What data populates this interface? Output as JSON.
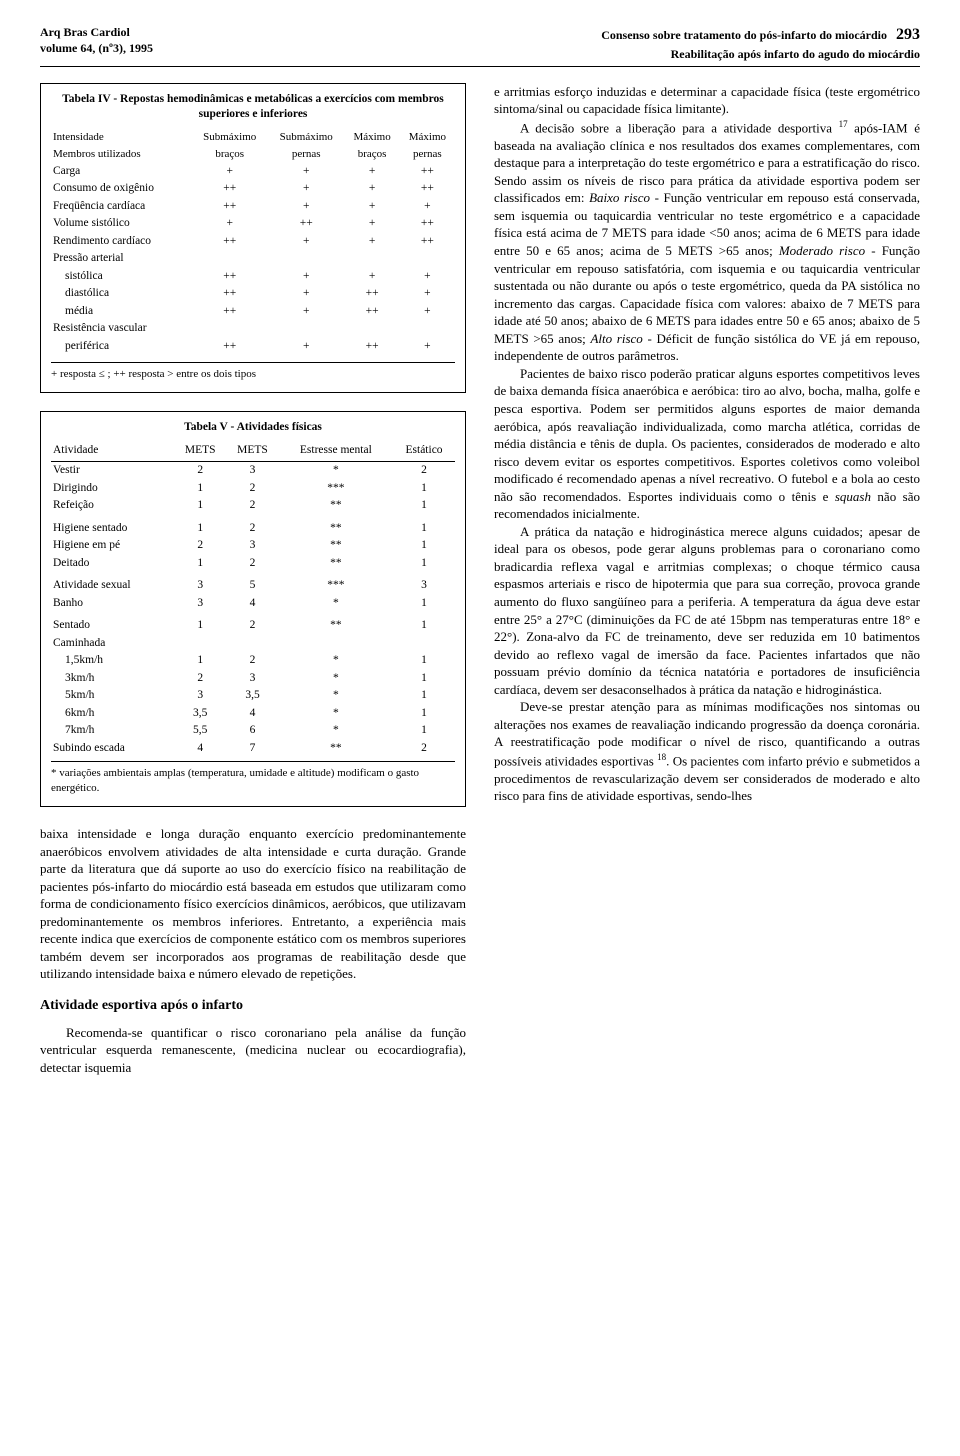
{
  "header": {
    "journal": "Arq Bras Cardiol",
    "volume": "volume 64, (nº3), 1995",
    "article_title_1": "Consenso sobre tratamento do pós-infarto do miocárdio",
    "article_title_2": "Reabilitação após infarto do agudo do miocárdio",
    "page_number": "293"
  },
  "table4": {
    "title": "Tabela IV - Repostas hemodinâmicas e metabólicas a exercícios com membros superiores e inferiores",
    "columns": [
      {
        "h1": "Intensidade",
        "h2": "Membros utilizados"
      },
      {
        "h1": "Submáximo",
        "h2": "braços"
      },
      {
        "h1": "Submáximo",
        "h2": "pernas"
      },
      {
        "h1": "Máximo",
        "h2": "braços"
      },
      {
        "h1": "Máximo",
        "h2": "pernas"
      }
    ],
    "rows": [
      {
        "label": "Carga",
        "c": [
          "+",
          "+",
          "+",
          "++"
        ]
      },
      {
        "label": "Consumo de oxigênio",
        "c": [
          "++",
          "+",
          "+",
          "++"
        ]
      },
      {
        "label": "Freqüência cardíaca",
        "c": [
          "++",
          "+",
          "+",
          "+"
        ]
      },
      {
        "label": "Volume sistólico",
        "c": [
          "+",
          "++",
          "+",
          "++"
        ]
      },
      {
        "label": "Rendimento cardíaco",
        "c": [
          "++",
          "+",
          "+",
          "++"
        ]
      },
      {
        "label": "Pressão arterial",
        "c": [
          "",
          "",
          "",
          ""
        ],
        "section": true
      },
      {
        "label": "sistólica",
        "c": [
          "++",
          "+",
          "+",
          "+"
        ],
        "indent": true
      },
      {
        "label": "diastólica",
        "c": [
          "++",
          "+",
          "++",
          "+"
        ],
        "indent": true
      },
      {
        "label": "média",
        "c": [
          "++",
          "+",
          "++",
          "+"
        ],
        "indent": true
      },
      {
        "label": "Resistência vascular",
        "c": [
          "",
          "",
          "",
          ""
        ],
        "section": true
      },
      {
        "label": "periférica",
        "c": [
          "++",
          "+",
          "++",
          "+"
        ],
        "indent": true
      }
    ],
    "note": "+ resposta ≤ ; ++ resposta > entre os dois tipos"
  },
  "table5": {
    "title": "Tabela V - Atividades físicas",
    "columns": [
      "Atividade",
      "METS",
      "METS",
      "Estresse mental",
      "Estático"
    ],
    "rows": [
      {
        "c": [
          "Vestir",
          "2",
          "3",
          "*",
          "2"
        ]
      },
      {
        "c": [
          "Dirigindo",
          "1",
          "2",
          "***",
          "1"
        ]
      },
      {
        "c": [
          "Refeição",
          "1",
          "2",
          "**",
          "1"
        ]
      },
      {
        "c": [
          "Higiene sentado",
          "1",
          "2",
          "**",
          "1"
        ],
        "sect": true
      },
      {
        "c": [
          "Higiene em pé",
          "2",
          "3",
          "**",
          "1"
        ]
      },
      {
        "c": [
          "Deitado",
          "1",
          "2",
          "**",
          "1"
        ]
      },
      {
        "c": [
          "Atividade sexual",
          "3",
          "5",
          "***",
          "3"
        ],
        "sect": true
      },
      {
        "c": [
          "Banho",
          "3",
          "4",
          "*",
          "1"
        ]
      },
      {
        "c": [
          "Sentado",
          "1",
          "2",
          "**",
          "1"
        ],
        "sect": true
      },
      {
        "c": [
          "Caminhada",
          "",
          "",
          "",
          ""
        ]
      },
      {
        "c": [
          "1,5km/h",
          "1",
          "2",
          "*",
          "1"
        ],
        "indent": true
      },
      {
        "c": [
          "3km/h",
          "2",
          "3",
          "*",
          "1"
        ],
        "indent": true
      },
      {
        "c": [
          "5km/h",
          "3",
          "3,5",
          "*",
          "1"
        ],
        "indent": true
      },
      {
        "c": [
          "6km/h",
          "3,5",
          "4",
          "*",
          "1"
        ],
        "indent": true
      },
      {
        "c": [
          "7km/h",
          "5,5",
          "6",
          "*",
          "1"
        ],
        "indent": true
      },
      {
        "c": [
          "Subindo escada",
          "4",
          "7",
          "**",
          "2"
        ]
      }
    ],
    "note": "* variações ambientais amplas (temperatura, umidade e altitude) modificam o gasto energético."
  },
  "left_prose": {
    "p1": "baixa intensidade e longa duração enquanto exercício predominantemente anaeróbicos envolvem atividades de alta intensidade e curta duração. Grande parte da literatura que dá suporte ao uso do exercício físico na reabilitação de pacientes pós-infarto do miocárdio está baseada em estudos que utilizaram como forma de condicionamento físico exercícios dinâmicos, aeróbicos, que utilizavam predominantemente os membros inferiores. Entretanto, a experiência mais recente indica que exercícios de componente estático com os membros superiores também devem ser incorporados aos programas de reabilitação desde que utilizando intensidade baixa e número elevado de repetições.",
    "h1": "Atividade esportiva após o infarto",
    "p2": "Recomenda-se quantificar o risco coronariano pela análise da função ventricular esquerda remanescente, (medicina nuclear ou ecocardiografia), detectar isquemia"
  },
  "right_prose": {
    "p1": "e arritmias esforço induzidas e determinar a capacidade física (teste ergométrico sintoma/sinal ou capacidade física limitante).",
    "p2_prefix": "A decisão sobre a liberação para a atividade desportiva ",
    "p2_sup": "17",
    "p2_rest": " após-IAM é baseada na avaliação clínica e nos resultados dos exames complementares, com destaque para a interpretação do teste ergométrico e para a estratificação do risco. Sendo assim os níveis de risco para prática da atividade esportiva podem ser classificados em: ",
    "p2_i1": "Baixo risco",
    "p2_mid1": " - Função ventricular em repouso está conservada, sem isquemia ou taquicardia ventricular no teste ergométrico e a capacidade física está acima de 7 METS para idade <50 anos; acima de 6 METS para idade entre 50 e 65 anos; acima de 5 METS >65 anos; ",
    "p2_i2": "Moderado risco",
    "p2_mid2": " - Função ventricular em repouso satisfatória, com isquemia e ou taquicardia ventricular sustentada ou não durante ou após o teste ergométrico, queda da PA sistólica no incremento das cargas. Capacidade física com valores: abaixo de 7 METS para idade até 50 anos; abaixo de 6 METS para idades entre 50 e 65 anos; abaixo de 5 METS >65 anos; ",
    "p2_i3": "Alto risco",
    "p2_end": " - Déficit de função sistólica do VE já em repouso, independente de outros parâmetros.",
    "p3_prefix": "Pacientes de baixo risco poderão praticar alguns esportes competitivos leves de baixa demanda física anaeróbica e aeróbica: tiro ao alvo, bocha, malha, golfe e pesca esportiva. Podem ser permitidos alguns esportes de maior demanda aeróbica, após reavaliação individualizada, como marcha atlética, corridas de média distância e tênis de dupla. Os pacientes, considerados de moderado e alto risco devem evitar os esportes competitivos. Esportes coletivos como voleibol modificado é recomendado apenas a nível recreativo. O futebol e a bola ao cesto não são recomendados. Esportes individuais como o tênis e ",
    "p3_i": "squash",
    "p3_end": " não são recomendados inicialmente.",
    "p4": "A prática da natação e hidroginástica merece alguns cuidados; apesar de ideal para os obesos, pode gerar alguns problemas para o coronariano como bradicardia reflexa vagal e arritmias complexas; o choque térmico causa espasmos arteriais e risco de hipotermia que para sua correção, provoca grande aumento do fluxo sangüíneo para a periferia. A temperatura da água deve estar entre 25° a 27°C (diminuições da FC de até 15bpm nas temperaturas entre 18° e 22°). Zona-alvo da FC de treinamento, deve ser reduzida em 10 batimentos devido ao reflexo vagal de imersão da face. Pacientes infartados que não possuam prévio domínio da técnica natatória e portadores de insuficiência cardíaca, devem ser desaconselhados à prática da natação e hidroginástica.",
    "p5_prefix": "Deve-se prestar atenção para as mínimas modificações nos sintomas ou alterações nos exames de reavaliação indicando progressão da doença coronária. A reestratificação pode modificar o nível de risco, quantificando a outras possíveis atividades esportivas ",
    "p5_sup": "18",
    "p5_end": ". Os pacientes com infarto prévio e submetidos a procedimentos de revascularização devem ser considerados de moderado e alto risco para fins de atividade esportivas, sendo-lhes"
  }
}
